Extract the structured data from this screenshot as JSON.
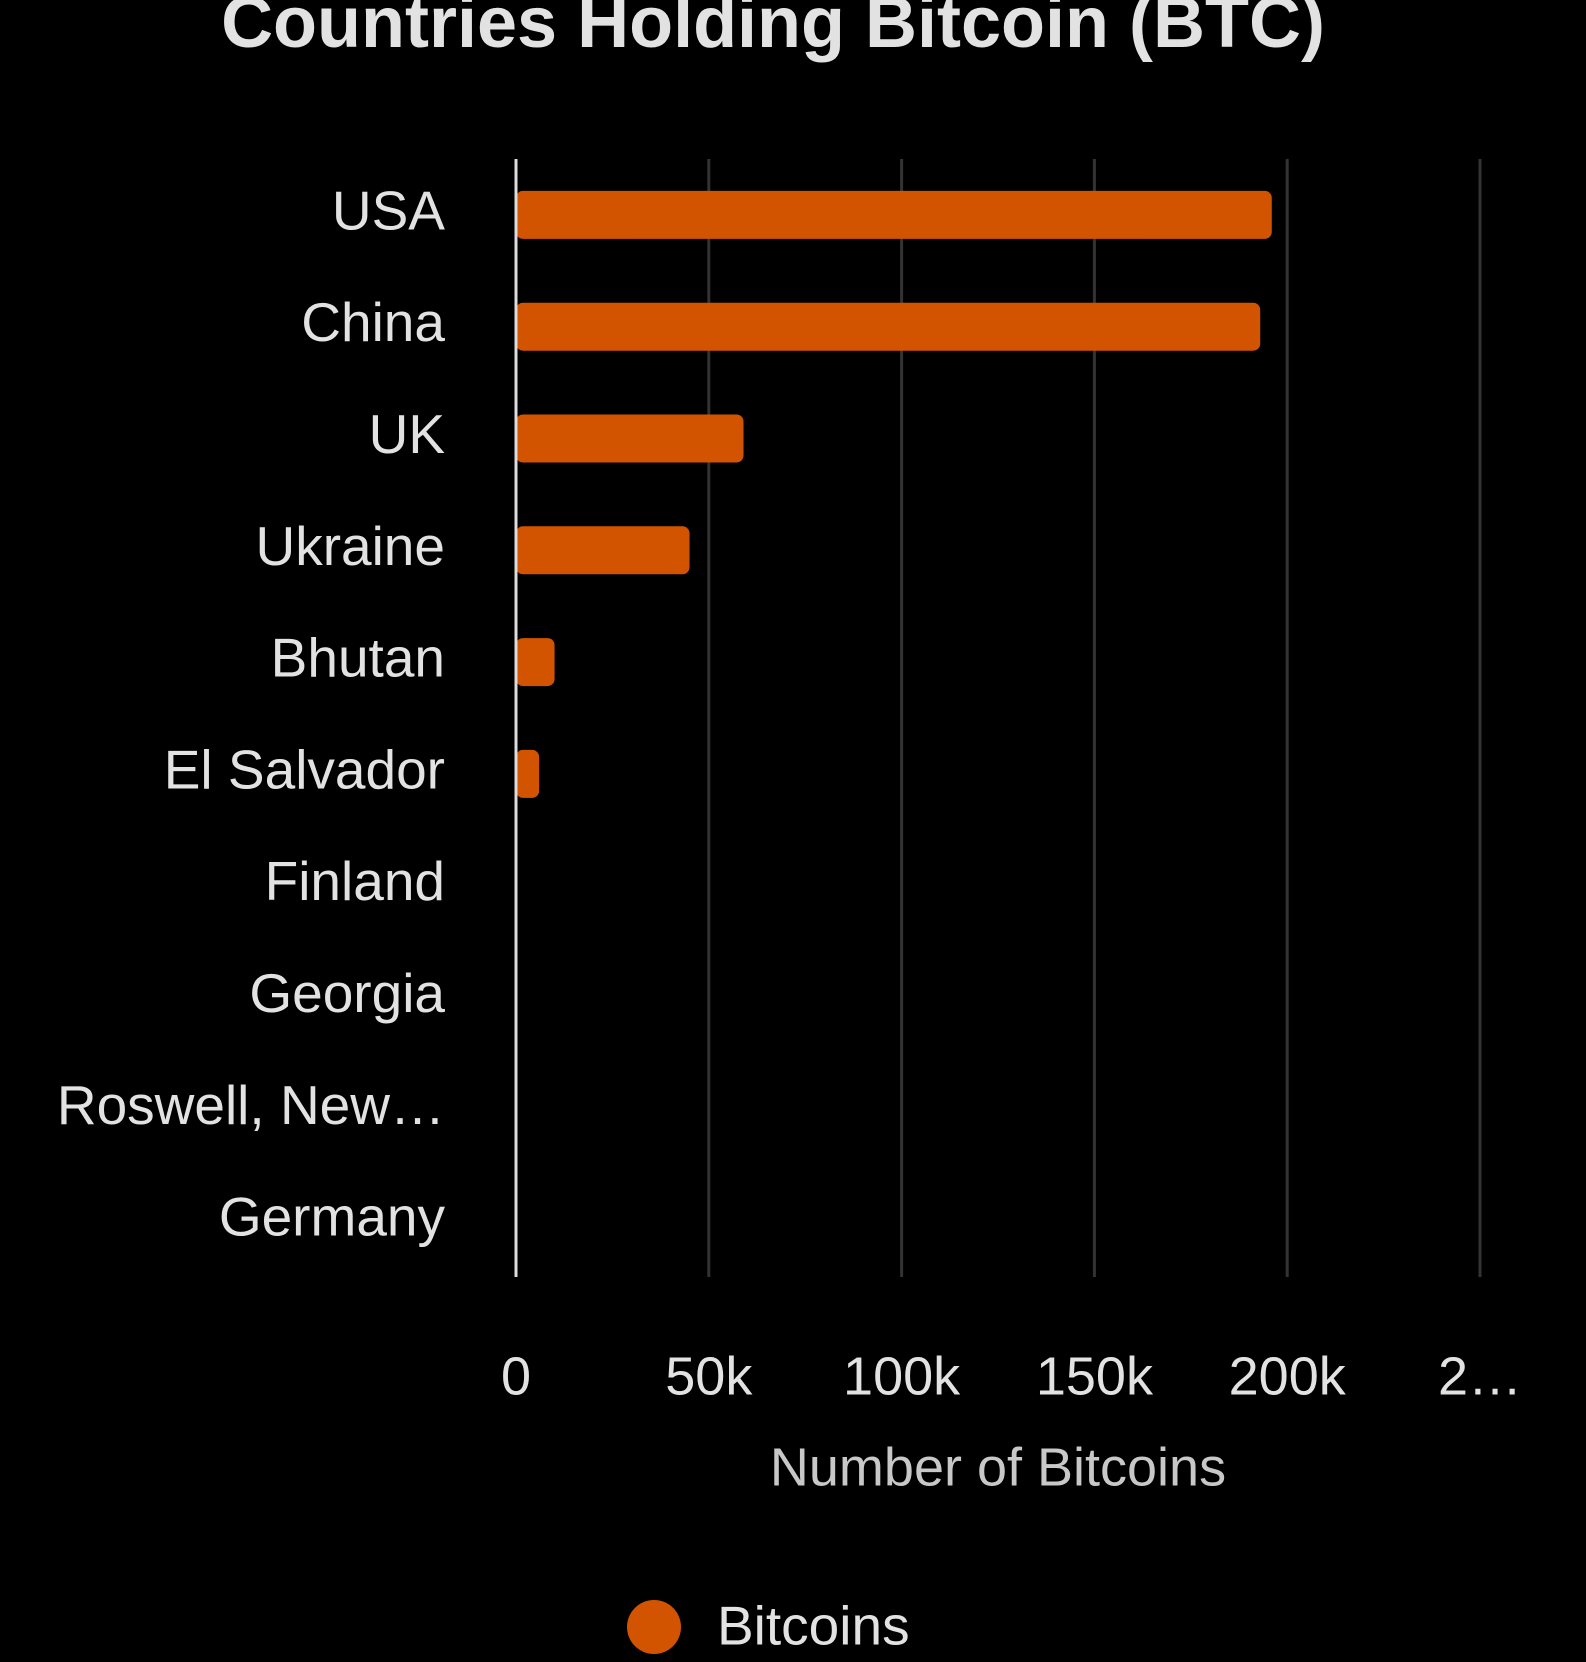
{
  "chart_data": {
    "type": "bar",
    "orientation": "horizontal",
    "title": "Countries Holding Bitcoin (BTC)",
    "x_label": "Number of Bitcoins",
    "categories": [
      "USA",
      "China",
      "UK",
      "Ukraine",
      "Bhutan",
      "El Salvador",
      "Finland",
      "Georgia",
      "Roswell, New…",
      "Germany"
    ],
    "series": [
      {
        "name": "Bitcoins",
        "color": "#d35400",
        "values": [
          196000,
          193000,
          59000,
          45000,
          10000,
          6000,
          0,
          0,
          0,
          0
        ]
      }
    ],
    "xlim": [
      0,
      250000
    ],
    "xticks": [
      0,
      {
        "value": 50000,
        "label": "50k"
      },
      {
        "value": 100000,
        "label": "100k"
      },
      {
        "value": 150000,
        "label": "150k"
      },
      {
        "value": 200000,
        "label": "200k"
      },
      {
        "value": 250000,
        "label": "2…"
      }
    ],
    "grid": true,
    "legend": "bottom"
  }
}
